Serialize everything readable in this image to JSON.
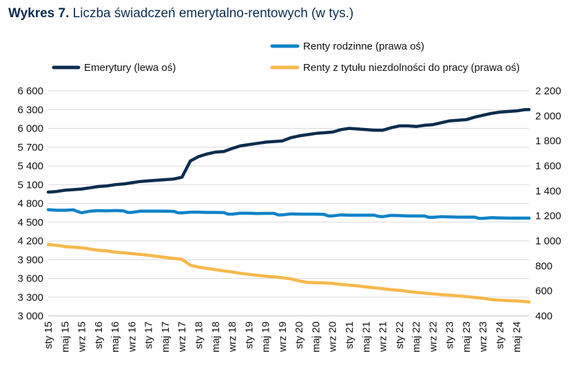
{
  "title": {
    "lead": "Wykres 7.",
    "rest": "Liczba świadczeń emerytalno-rentowych (w tys.)"
  },
  "colors": {
    "emerytury": "#0b2d4f",
    "renty_rodzinne": "#1083c8",
    "renty_niezdolnosci": "#f8b84b",
    "grid": "#d9d9d9",
    "text": "#111111"
  },
  "chart_data": {
    "type": "line",
    "title": "Wykres 7. Liczba świadczeń emerytalno-rentowych (w tys.)",
    "legend": {
      "placement": "top",
      "entries": [
        "Renty rodzinne (prawa oś)",
        "Emerytury (lewa oś)",
        "Renty z tytułu niezdolności do pracy (prawa oś)"
      ]
    },
    "x_tick_labels": [
      "sty 15",
      "maj 15",
      "wrz 15",
      "sty 16",
      "maj 16",
      "wrz 16",
      "sty 17",
      "maj 17",
      "wrz 17",
      "sty 18",
      "maj 18",
      "wrz 18",
      "sty 19",
      "maj 19",
      "wrz 19",
      "sty 20",
      "maj 20",
      "wrz 20",
      "sty 21",
      "maj 21",
      "wrz 21",
      "sty 22",
      "maj 22",
      "wrz 22",
      "sty 23",
      "maj 23",
      "wrz 23",
      "sty 24",
      "maj 24"
    ],
    "x_start": "2015-01",
    "x_end": "2024-08",
    "left_axis": {
      "ylim": [
        3000,
        6600
      ],
      "ticks": [
        "3 000",
        "3 300",
        "3 600",
        "3 900",
        "4 200",
        "4 500",
        "4 800",
        "5 100",
        "5 400",
        "5 700",
        "6 000",
        "6 300",
        "6 600"
      ]
    },
    "right_axis": {
      "ylim": [
        400,
        2200
      ],
      "ticks": [
        "400",
        "600",
        "800",
        "1 000",
        "1 200",
        "1 400",
        "1 600",
        "1 800",
        "2 000",
        "2 200"
      ]
    },
    "grid": true,
    "series": [
      {
        "name": "Emerytury (lewa oś)",
        "axis": "left",
        "key": "emerytury",
        "points": [
          [
            "2015-01",
            4980
          ],
          [
            "2015-03",
            4990
          ],
          [
            "2015-05",
            5010
          ],
          [
            "2015-07",
            5020
          ],
          [
            "2015-09",
            5030
          ],
          [
            "2015-11",
            5050
          ],
          [
            "2016-01",
            5070
          ],
          [
            "2016-03",
            5080
          ],
          [
            "2016-05",
            5100
          ],
          [
            "2016-07",
            5110
          ],
          [
            "2016-09",
            5130
          ],
          [
            "2016-11",
            5150
          ],
          [
            "2017-01",
            5160
          ],
          [
            "2017-03",
            5170
          ],
          [
            "2017-05",
            5180
          ],
          [
            "2017-07",
            5190
          ],
          [
            "2017-09",
            5220
          ],
          [
            "2017-10",
            5350
          ],
          [
            "2017-11",
            5480
          ],
          [
            "2018-01",
            5550
          ],
          [
            "2018-03",
            5590
          ],
          [
            "2018-05",
            5620
          ],
          [
            "2018-07",
            5630
          ],
          [
            "2018-09",
            5680
          ],
          [
            "2018-11",
            5720
          ],
          [
            "2019-01",
            5740
          ],
          [
            "2019-03",
            5760
          ],
          [
            "2019-05",
            5780
          ],
          [
            "2019-07",
            5790
          ],
          [
            "2019-09",
            5800
          ],
          [
            "2019-11",
            5850
          ],
          [
            "2020-01",
            5880
          ],
          [
            "2020-03",
            5900
          ],
          [
            "2020-05",
            5920
          ],
          [
            "2020-07",
            5930
          ],
          [
            "2020-09",
            5940
          ],
          [
            "2020-11",
            5980
          ],
          [
            "2021-01",
            6000
          ],
          [
            "2021-03",
            5990
          ],
          [
            "2021-05",
            5980
          ],
          [
            "2021-07",
            5970
          ],
          [
            "2021-09",
            5970
          ],
          [
            "2021-11",
            6010
          ],
          [
            "2022-01",
            6040
          ],
          [
            "2022-03",
            6040
          ],
          [
            "2022-05",
            6030
          ],
          [
            "2022-07",
            6050
          ],
          [
            "2022-09",
            6060
          ],
          [
            "2022-11",
            6090
          ],
          [
            "2023-01",
            6120
          ],
          [
            "2023-03",
            6130
          ],
          [
            "2023-05",
            6140
          ],
          [
            "2023-07",
            6180
          ],
          [
            "2023-09",
            6210
          ],
          [
            "2023-11",
            6240
          ],
          [
            "2024-01",
            6260
          ],
          [
            "2024-03",
            6270
          ],
          [
            "2024-05",
            6280
          ],
          [
            "2024-07",
            6300
          ],
          [
            "2024-08",
            6300
          ]
        ]
      },
      {
        "name": "Renty rodzinne (prawa oś)",
        "axis": "right",
        "key": "renty_rodzinne",
        "points": [
          [
            "2015-01",
            1250
          ],
          [
            "2015-03",
            1245
          ],
          [
            "2015-05",
            1245
          ],
          [
            "2015-07",
            1248
          ],
          [
            "2015-08",
            1235
          ],
          [
            "2015-09",
            1225
          ],
          [
            "2015-11",
            1238
          ],
          [
            "2016-01",
            1242
          ],
          [
            "2016-03",
            1240
          ],
          [
            "2016-05",
            1243
          ],
          [
            "2016-07",
            1240
          ],
          [
            "2016-08",
            1228
          ],
          [
            "2016-09",
            1228
          ],
          [
            "2016-11",
            1238
          ],
          [
            "2017-01",
            1238
          ],
          [
            "2017-03",
            1238
          ],
          [
            "2017-05",
            1238
          ],
          [
            "2017-07",
            1236
          ],
          [
            "2017-08",
            1225
          ],
          [
            "2017-09",
            1224
          ],
          [
            "2017-11",
            1230
          ],
          [
            "2018-01",
            1230
          ],
          [
            "2018-03",
            1228
          ],
          [
            "2018-05",
            1228
          ],
          [
            "2018-07",
            1226
          ],
          [
            "2018-08",
            1214
          ],
          [
            "2018-09",
            1214
          ],
          [
            "2018-11",
            1222
          ],
          [
            "2019-01",
            1222
          ],
          [
            "2019-03",
            1219
          ],
          [
            "2019-05",
            1220
          ],
          [
            "2019-07",
            1220
          ],
          [
            "2019-08",
            1208
          ],
          [
            "2019-09",
            1208
          ],
          [
            "2019-11",
            1216
          ],
          [
            "2020-01",
            1214
          ],
          [
            "2020-03",
            1214
          ],
          [
            "2020-05",
            1214
          ],
          [
            "2020-07",
            1212
          ],
          [
            "2020-08",
            1200
          ],
          [
            "2020-09",
            1200
          ],
          [
            "2020-11",
            1208
          ],
          [
            "2021-01",
            1206
          ],
          [
            "2021-03",
            1206
          ],
          [
            "2021-05",
            1206
          ],
          [
            "2021-07",
            1206
          ],
          [
            "2021-08",
            1196
          ],
          [
            "2021-09",
            1194
          ],
          [
            "2021-11",
            1204
          ],
          [
            "2022-01",
            1202
          ],
          [
            "2022-03",
            1200
          ],
          [
            "2022-05",
            1200
          ],
          [
            "2022-07",
            1200
          ],
          [
            "2022-08",
            1188
          ],
          [
            "2022-09",
            1188
          ],
          [
            "2022-11",
            1194
          ],
          [
            "2023-01",
            1192
          ],
          [
            "2023-03",
            1190
          ],
          [
            "2023-05",
            1190
          ],
          [
            "2023-07",
            1190
          ],
          [
            "2023-08",
            1180
          ],
          [
            "2023-09",
            1180
          ],
          [
            "2023-11",
            1186
          ],
          [
            "2024-01",
            1184
          ],
          [
            "2024-03",
            1182
          ],
          [
            "2024-05",
            1182
          ],
          [
            "2024-08",
            1182
          ]
        ]
      },
      {
        "name": "Renty z tytułu niezdolności do pracy (prawa oś)",
        "axis": "right",
        "key": "renty_niezdolnosci",
        "points": [
          [
            "2015-01",
            970
          ],
          [
            "2015-03",
            965
          ],
          [
            "2015-05",
            955
          ],
          [
            "2015-07",
            950
          ],
          [
            "2015-09",
            945
          ],
          [
            "2015-11",
            935
          ],
          [
            "2016-01",
            925
          ],
          [
            "2016-03",
            920
          ],
          [
            "2016-05",
            910
          ],
          [
            "2016-07",
            905
          ],
          [
            "2016-09",
            898
          ],
          [
            "2016-11",
            892
          ],
          [
            "2017-01",
            885
          ],
          [
            "2017-03",
            876
          ],
          [
            "2017-05",
            868
          ],
          [
            "2017-07",
            860
          ],
          [
            "2017-09",
            852
          ],
          [
            "2017-10",
            830
          ],
          [
            "2017-11",
            805
          ],
          [
            "2018-01",
            790
          ],
          [
            "2018-03",
            780
          ],
          [
            "2018-05",
            770
          ],
          [
            "2018-07",
            760
          ],
          [
            "2018-09",
            752
          ],
          [
            "2018-11",
            740
          ],
          [
            "2019-01",
            732
          ],
          [
            "2019-03",
            725
          ],
          [
            "2019-05",
            718
          ],
          [
            "2019-07",
            712
          ],
          [
            "2019-09",
            705
          ],
          [
            "2019-11",
            696
          ],
          [
            "2020-01",
            680
          ],
          [
            "2020-03",
            668
          ],
          [
            "2020-05",
            666
          ],
          [
            "2020-07",
            664
          ],
          [
            "2020-09",
            660
          ],
          [
            "2020-11",
            652
          ],
          [
            "2021-01",
            646
          ],
          [
            "2021-03",
            640
          ],
          [
            "2021-05",
            632
          ],
          [
            "2021-07",
            625
          ],
          [
            "2021-09",
            618
          ],
          [
            "2021-11",
            610
          ],
          [
            "2022-01",
            604
          ],
          [
            "2022-03",
            596
          ],
          [
            "2022-05",
            588
          ],
          [
            "2022-07",
            582
          ],
          [
            "2022-09",
            576
          ],
          [
            "2022-11",
            570
          ],
          [
            "2023-01",
            566
          ],
          [
            "2023-03",
            560
          ],
          [
            "2023-05",
            554
          ],
          [
            "2023-07",
            548
          ],
          [
            "2023-09",
            542
          ],
          [
            "2023-11",
            530
          ],
          [
            "2024-01",
            526
          ],
          [
            "2024-03",
            522
          ],
          [
            "2024-05",
            520
          ],
          [
            "2024-07",
            515
          ],
          [
            "2024-08",
            512
          ]
        ]
      }
    ]
  }
}
